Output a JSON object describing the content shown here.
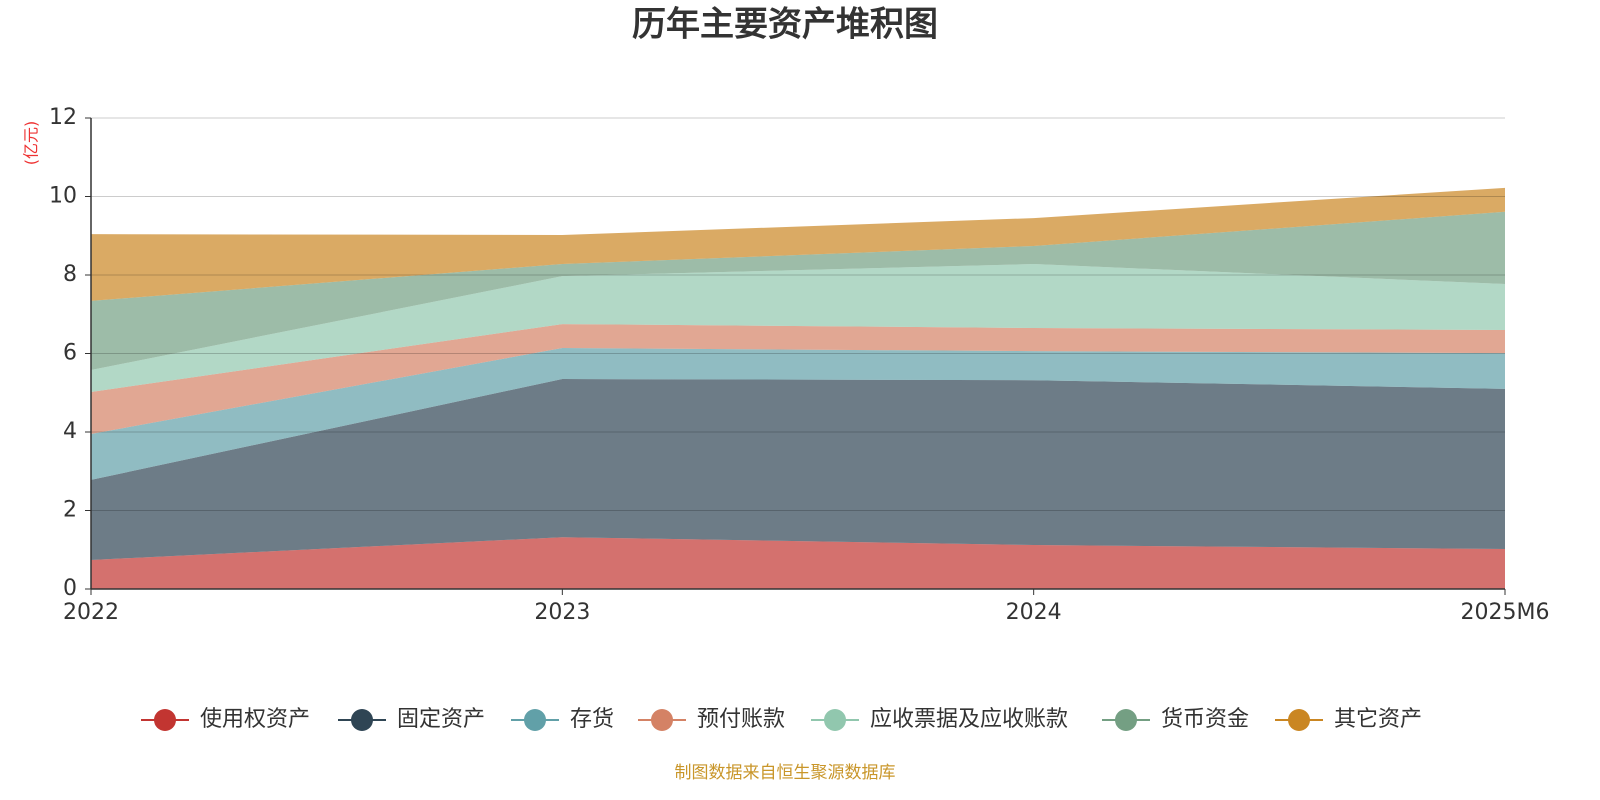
{
  "chart_data": {
    "type": "stacked-area",
    "title": "历年主要资产堆积图",
    "y_label": "(亿元)",
    "categories": [
      "2022",
      "2023",
      "2024",
      "2025M6"
    ],
    "series": [
      {
        "name": "使用权资产",
        "color": "#c23531",
        "values": [
          0.74,
          1.32,
          1.12,
          1.02
        ]
      },
      {
        "name": "固定资产",
        "color": "#2f4554",
        "values": [
          2.04,
          4.03,
          4.2,
          4.08
        ]
      },
      {
        "name": "存货",
        "color": "#61a0a8",
        "values": [
          1.17,
          0.79,
          0.74,
          0.91
        ]
      },
      {
        "name": "预付账款",
        "color": "#d48265",
        "values": [
          1.07,
          0.61,
          0.59,
          0.59
        ]
      },
      {
        "name": "应收票据及应收账款",
        "color": "#91c7ae",
        "values": [
          0.56,
          1.22,
          1.63,
          1.17
        ]
      },
      {
        "name": "货币资金",
        "color": "#749f83",
        "values": [
          1.76,
          0.31,
          0.46,
          1.84
        ]
      },
      {
        "name": "其它资产",
        "color": "#ca8622",
        "values": [
          1.7,
          0.74,
          0.71,
          0.61
        ]
      }
    ],
    "ylim": [
      0,
      12
    ],
    "yticks": [
      0,
      2,
      4,
      6,
      8,
      10,
      12
    ],
    "grid": true,
    "source": "制图数据来自恒生聚源数据库"
  }
}
